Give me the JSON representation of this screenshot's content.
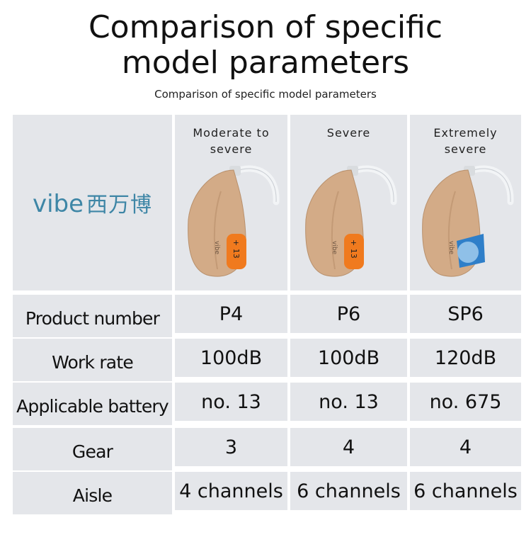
{
  "header": {
    "title": "Comparison of specific model parameters",
    "subtitle": "Comparison of specific model parameters"
  },
  "logo": {
    "brand": "vibe",
    "chinese": "西万博"
  },
  "models": [
    {
      "level": "Moderate to severe",
      "device_brand": "vibe",
      "battery_mark": "+ 13"
    },
    {
      "level": "Severe",
      "device_brand": "vibe",
      "battery_mark": "+ 13"
    },
    {
      "level": "Extremely severe",
      "device_brand": "vibe"
    }
  ],
  "table": {
    "rows": [
      [
        "Product number",
        "P4",
        "P6",
        "SP6"
      ],
      [
        "Work rate",
        "100dB",
        "100dB",
        "120dB"
      ],
      [
        "Applicable battery",
        "no. 13",
        "no. 13",
        "no. 675"
      ],
      [
        "Gear",
        "3",
        "4",
        "4"
      ],
      [
        "Aisle",
        "4 channels",
        "6 channels",
        "6 channels"
      ]
    ]
  }
}
